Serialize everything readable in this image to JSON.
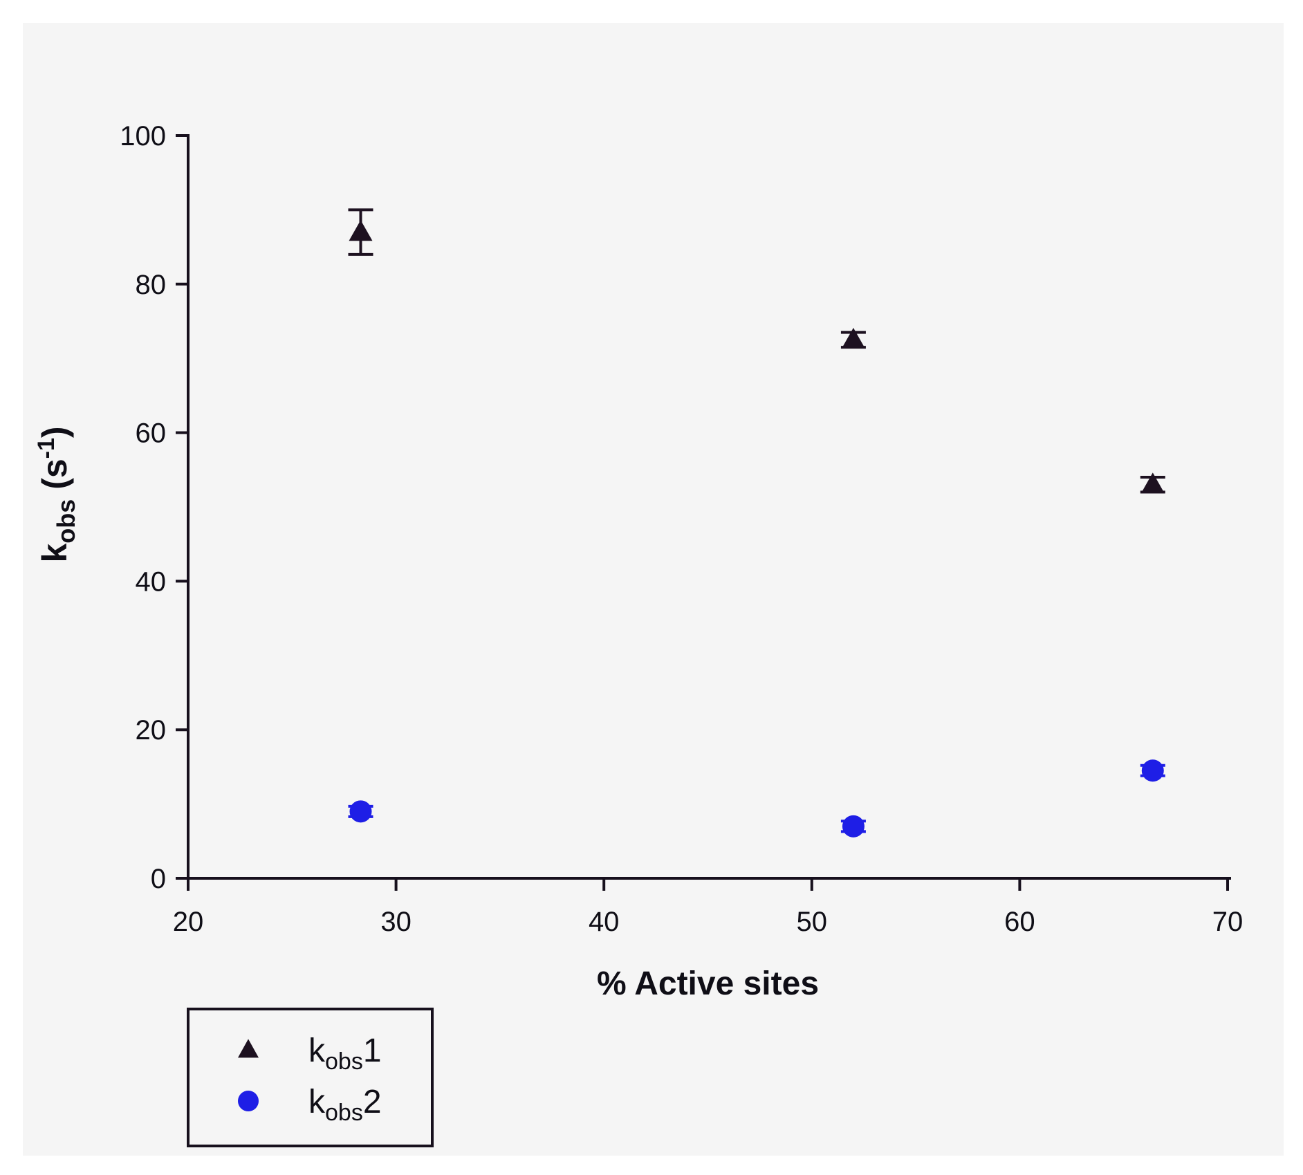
{
  "chart_data": {
    "type": "scatter",
    "title": "",
    "xlabel": "% Active sites",
    "ylabel_parts": {
      "base": "k",
      "sub": "obs",
      "mid": " (s",
      "sup": "-1",
      "end": ")"
    },
    "xlim": [
      20,
      70
    ],
    "ylim": [
      0,
      100
    ],
    "x_ticks": [
      20,
      30,
      40,
      50,
      60,
      70
    ],
    "y_ticks": [
      0,
      20,
      40,
      60,
      80,
      100
    ],
    "grid": false,
    "legend_position": "bottom-left-outside",
    "series": [
      {
        "name_parts": {
          "base": "k",
          "sub": "obs",
          "suffix": "1"
        },
        "marker": "triangle",
        "color": "#1d1120",
        "points": [
          {
            "x": 28.3,
            "y": 87,
            "yerr": 3
          },
          {
            "x": 52.0,
            "y": 72.5,
            "yerr": 1
          },
          {
            "x": 66.4,
            "y": 53,
            "yerr": 1
          }
        ]
      },
      {
        "name_parts": {
          "base": "k",
          "sub": "obs",
          "suffix": "2"
        },
        "marker": "circle",
        "color": "#1e1ee6",
        "points": [
          {
            "x": 28.3,
            "y": 9,
            "yerr": 0.7
          },
          {
            "x": 52.0,
            "y": 7,
            "yerr": 0.7
          },
          {
            "x": 66.4,
            "y": 14.5,
            "yerr": 0.7
          }
        ]
      }
    ]
  },
  "colors": {
    "page_bg": "#ffffff",
    "panel_bg": "#f5f5f5",
    "axis": "#17101d",
    "text": "#0f0e16"
  }
}
